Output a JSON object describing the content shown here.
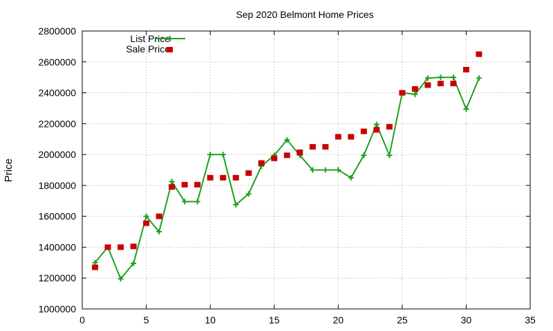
{
  "chart_data": {
    "type": "line",
    "title": "Sep 2020 Belmont Home Prices",
    "xlabel": "",
    "ylabel": "Price",
    "xlim": [
      0,
      35
    ],
    "ylim": [
      1000000,
      2800000
    ],
    "xticks": [
      0,
      5,
      10,
      15,
      20,
      25,
      30,
      35
    ],
    "yticks": [
      1000000,
      1200000,
      1400000,
      1600000,
      1800000,
      2000000,
      2200000,
      2400000,
      2600000,
      2800000
    ],
    "grid": true,
    "legend_position": "top-left",
    "series": [
      {
        "name": "List Price",
        "style": "line-plus",
        "color": "#1ea01e",
        "x": [
          1,
          2,
          3,
          4,
          5,
          6,
          7,
          8,
          9,
          10,
          11,
          12,
          13,
          14,
          15,
          16,
          17,
          18,
          19,
          20,
          21,
          22,
          23,
          24,
          25,
          26,
          27,
          28,
          29,
          30,
          31
        ],
        "values": [
          1300000,
          1400000,
          1195000,
          1295000,
          1600000,
          1500000,
          1825000,
          1695000,
          1695000,
          2000000,
          2000000,
          1675000,
          1745000,
          1925000,
          1995000,
          2095000,
          1995000,
          1900000,
          1900000,
          1900000,
          1850000,
          1995000,
          2195000,
          1995000,
          2400000,
          2390000,
          2495000,
          2500000,
          2500000,
          2295000,
          2495000
        ]
      },
      {
        "name": "Sale Price",
        "style": "square-points",
        "color": "#cc0000",
        "x": [
          1,
          2,
          3,
          4,
          5,
          6,
          7,
          8,
          9,
          10,
          11,
          12,
          13,
          14,
          15,
          16,
          17,
          18,
          19,
          20,
          21,
          22,
          23,
          24,
          25,
          26,
          27,
          28,
          29,
          30,
          31
        ],
        "values": [
          1270000,
          1400000,
          1400000,
          1405000,
          1555000,
          1600000,
          1790000,
          1805000,
          1805000,
          1850000,
          1850000,
          1850000,
          1880000,
          1945000,
          1975000,
          1995000,
          2015000,
          2050000,
          2050000,
          2115000,
          2115000,
          2150000,
          2160000,
          2180000,
          2400000,
          2425000,
          2450000,
          2460000,
          2460000,
          2550000,
          2650000
        ]
      }
    ]
  }
}
